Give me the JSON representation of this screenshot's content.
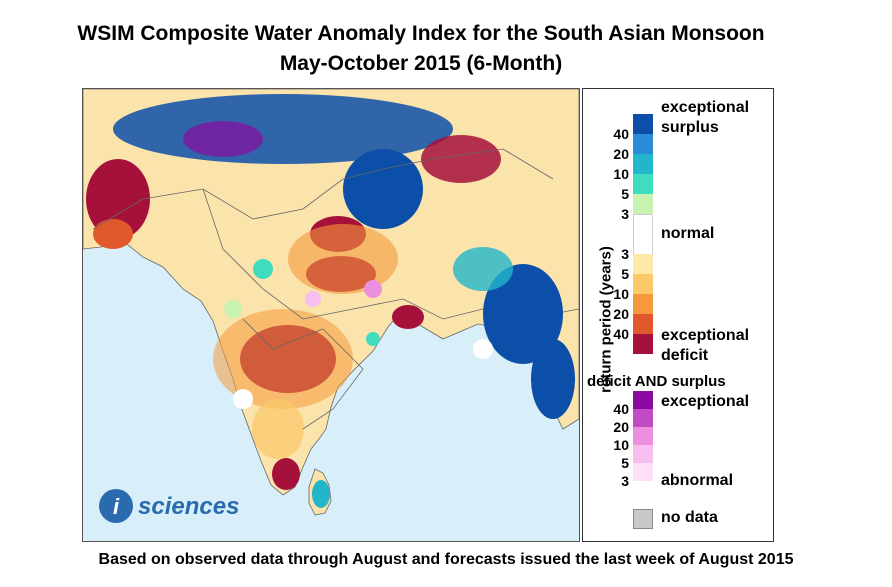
{
  "title_line1": "WSIM Composite Water Anomaly Index for the South Asian Monsoon",
  "title_line2": "May-October 2015 (6-Month)",
  "footer": "Based on observed data through August and forecasts issued the last week of August 2015",
  "logo_text": "sciences",
  "logo_letter": "i",
  "legend": {
    "axis_title": "return period (years)",
    "surplus_label_1": "exceptional",
    "surplus_label_2": "surplus",
    "normal_label": "normal",
    "deficit_label_1": "exceptional",
    "deficit_label_2": "deficit",
    "both_header": "deficit AND surplus",
    "both_exceptional": "exceptional",
    "both_abnormal": "abnormal",
    "nodata_label": "no data",
    "surplus_ticks": [
      "40",
      "20",
      "10",
      "5",
      "3"
    ],
    "deficit_ticks": [
      "3",
      "5",
      "10",
      "20",
      "40"
    ],
    "both_ticks": [
      "40",
      "20",
      "10",
      "5",
      "3"
    ]
  },
  "colors": {
    "ocean": "#d8effa",
    "land": "#ffffff",
    "surplus": [
      "#0c4fa8",
      "#2a8bd6",
      "#23b5c9",
      "#3fdcc0",
      "#c8f2b0"
    ],
    "normal": "#ffffff",
    "deficit": [
      "#fde9a8",
      "#fbc86a",
      "#f59a3c",
      "#e0582c",
      "#a5113a"
    ],
    "both": [
      "#8a0aa0",
      "#c24ac4",
      "#ec8fde",
      "#f6bff0",
      "#fde0f8"
    ],
    "nodata": "#c8c8c8"
  }
}
